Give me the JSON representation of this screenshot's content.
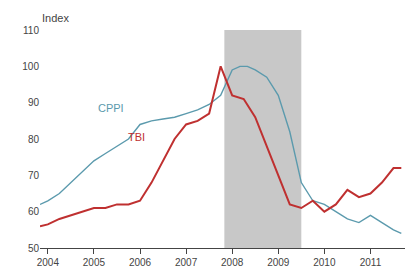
{
  "chart_data": {
    "type": "line",
    "ylabel": "Index",
    "xlim": [
      2003.83,
      2011.75
    ],
    "ylim": [
      50,
      110
    ],
    "xticks": [
      2004,
      2005,
      2006,
      2007,
      2008,
      2009,
      2010,
      2011
    ],
    "yticks": [
      50,
      60,
      70,
      80,
      90,
      100,
      110
    ],
    "grid": false,
    "shaded_regions": [
      {
        "start": 2007.83,
        "end": 2009.5,
        "color": "#c8c8c8"
      }
    ],
    "series": [
      {
        "name": "CPPI",
        "color": "#5b9aad",
        "x": [
          2003.83,
          2004.0,
          2004.25,
          2004.5,
          2004.75,
          2005.0,
          2005.25,
          2005.5,
          2005.75,
          2006.0,
          2006.25,
          2006.5,
          2006.75,
          2007.0,
          2007.25,
          2007.5,
          2007.75,
          2008.0,
          2008.17,
          2008.33,
          2008.5,
          2008.75,
          2009.0,
          2009.25,
          2009.5,
          2009.75,
          2010.0,
          2010.25,
          2010.5,
          2010.75,
          2011.0,
          2011.25,
          2011.5,
          2011.67
        ],
        "values": [
          62,
          63,
          65,
          68,
          71,
          74,
          76,
          78,
          80,
          84,
          85,
          85.5,
          86,
          87,
          88,
          89.5,
          92,
          99,
          100,
          100,
          99,
          97,
          92,
          82,
          68,
          63,
          62,
          60,
          58,
          57,
          59,
          57,
          55,
          54
        ]
      },
      {
        "name": "TBI",
        "color": "#bf3030",
        "x": [
          2003.83,
          2004.0,
          2004.25,
          2004.5,
          2004.75,
          2005.0,
          2005.25,
          2005.5,
          2005.75,
          2006.0,
          2006.25,
          2006.5,
          2006.75,
          2007.0,
          2007.25,
          2007.5,
          2007.75,
          2008.0,
          2008.25,
          2008.5,
          2008.75,
          2009.0,
          2009.25,
          2009.5,
          2009.75,
          2010.0,
          2010.25,
          2010.5,
          2010.75,
          2011.0,
          2011.25,
          2011.5,
          2011.67
        ],
        "values": [
          56,
          56.5,
          58,
          59,
          60,
          61,
          61,
          62,
          62,
          63,
          68,
          74,
          80,
          84,
          85,
          87,
          100,
          92,
          91,
          86,
          78,
          70,
          62,
          61,
          63,
          60,
          62,
          66,
          64,
          65,
          68,
          72,
          72
        ]
      }
    ],
    "annotations": [
      {
        "text": "CPPI",
        "x": 2005.05,
        "y": 88.5,
        "color": "#5b9aad"
      },
      {
        "text": "TBI",
        "x": 2005.7,
        "y": 80.5,
        "color": "#bf3030"
      }
    ]
  }
}
